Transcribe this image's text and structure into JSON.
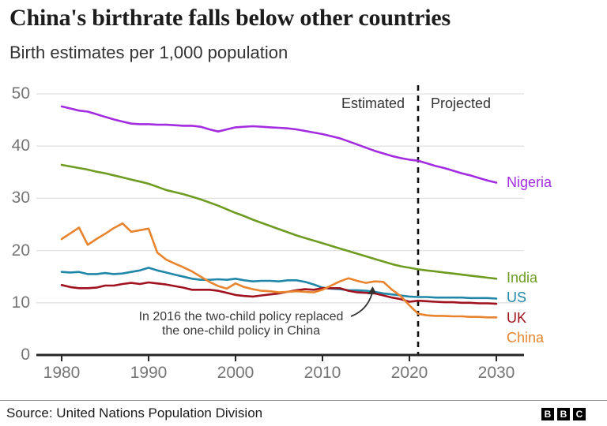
{
  "header": {
    "title": "China's birthrate falls below other countries",
    "subtitle": "Birth estimates per 1,000 population"
  },
  "chart_data": {
    "type": "line",
    "grid": "horizontal",
    "ylim": [
      0,
      50
    ],
    "yticks": [
      0,
      10,
      20,
      30,
      40,
      50
    ],
    "xticks": [
      1980,
      1990,
      2000,
      2010,
      2020,
      2030
    ],
    "divider_year": 2021,
    "estimated_label": "Estimated",
    "projected_label": "Projected",
    "legend_position": "right-of-lines",
    "years": [
      1980,
      1981,
      1982,
      1983,
      1984,
      1985,
      1986,
      1987,
      1988,
      1989,
      1990,
      1991,
      1992,
      1993,
      1994,
      1995,
      1996,
      1997,
      1998,
      1999,
      2000,
      2001,
      2002,
      2003,
      2004,
      2005,
      2006,
      2007,
      2008,
      2009,
      2010,
      2011,
      2012,
      2013,
      2014,
      2015,
      2016,
      2017,
      2018,
      2019,
      2020,
      2021,
      2022,
      2023,
      2024,
      2025,
      2026,
      2027,
      2028,
      2029,
      2030
    ],
    "series": [
      {
        "name": "Nigeria",
        "color": "#a32ce0",
        "values": [
          47.6,
          47.2,
          46.8,
          46.6,
          46.1,
          45.6,
          45.1,
          44.7,
          44.3,
          44.2,
          44.2,
          44.1,
          44.1,
          44.0,
          43.9,
          43.9,
          43.7,
          43.2,
          42.8,
          43.2,
          43.6,
          43.7,
          43.8,
          43.7,
          43.6,
          43.5,
          43.4,
          43.2,
          42.9,
          42.6,
          42.3,
          41.9,
          41.5,
          40.9,
          40.3,
          39.7,
          39.1,
          38.6,
          38.1,
          37.7,
          37.4,
          37.2,
          36.7,
          36.2,
          35.8,
          35.3,
          34.8,
          34.4,
          33.9,
          33.4,
          33.0
        ]
      },
      {
        "name": "India",
        "color": "#6e9b22",
        "values": [
          36.4,
          36.1,
          35.8,
          35.5,
          35.1,
          34.8,
          34.4,
          34.0,
          33.6,
          33.2,
          32.8,
          32.2,
          31.6,
          31.2,
          30.8,
          30.3,
          29.8,
          29.2,
          28.6,
          27.9,
          27.2,
          26.6,
          25.9,
          25.3,
          24.7,
          24.1,
          23.5,
          22.9,
          22.4,
          21.9,
          21.4,
          20.9,
          20.4,
          19.9,
          19.4,
          18.9,
          18.4,
          17.9,
          17.4,
          17.0,
          16.7,
          16.4,
          16.2,
          16.0,
          15.8,
          15.6,
          15.4,
          15.2,
          15.0,
          14.8,
          14.6
        ]
      },
      {
        "name": "US",
        "color": "#2187a8",
        "values": [
          15.9,
          15.8,
          15.9,
          15.5,
          15.5,
          15.7,
          15.5,
          15.6,
          15.9,
          16.2,
          16.7,
          16.2,
          15.8,
          15.4,
          15.0,
          14.6,
          14.4,
          14.4,
          14.5,
          14.4,
          14.6,
          14.3,
          14.1,
          14.2,
          14.2,
          14.1,
          14.3,
          14.3,
          14.0,
          13.5,
          12.9,
          12.7,
          12.6,
          12.4,
          12.4,
          12.3,
          12.1,
          11.8,
          11.6,
          11.4,
          11.2,
          11.1,
          11.1,
          11.0,
          11.0,
          11.0,
          11.0,
          10.9,
          10.9,
          10.9,
          10.8
        ]
      },
      {
        "name": "UK",
        "color": "#a0121f",
        "values": [
          13.4,
          13.0,
          12.8,
          12.8,
          12.9,
          13.3,
          13.3,
          13.6,
          13.8,
          13.6,
          13.9,
          13.7,
          13.5,
          13.2,
          12.9,
          12.5,
          12.5,
          12.5,
          12.3,
          11.9,
          11.5,
          11.3,
          11.2,
          11.4,
          11.6,
          11.8,
          12.1,
          12.4,
          12.6,
          12.5,
          12.8,
          12.8,
          12.8,
          12.3,
          12.0,
          11.9,
          11.8,
          11.4,
          11.0,
          10.7,
          10.2,
          10.4,
          10.3,
          10.2,
          10.1,
          10.1,
          10.0,
          10.0,
          9.9,
          9.9,
          9.8
        ]
      },
      {
        "name": "China",
        "color": "#e8842d",
        "values": [
          22.2,
          23.3,
          24.4,
          21.1,
          22.2,
          23.2,
          24.3,
          25.2,
          23.6,
          23.9,
          24.2,
          19.6,
          18.3,
          17.5,
          16.8,
          16.0,
          15.0,
          14.0,
          13.2,
          12.7,
          13.7,
          13.0,
          12.6,
          12.3,
          12.2,
          12.0,
          12.1,
          12.2,
          12.1,
          12.0,
          12.5,
          13.3,
          14.1,
          14.7,
          14.2,
          13.8,
          14.1,
          14.0,
          12.5,
          11.3,
          9.5,
          7.9,
          7.6,
          7.5,
          7.5,
          7.4,
          7.4,
          7.3,
          7.3,
          7.2,
          7.2
        ]
      }
    ],
    "annotation": {
      "line1": "In 2016 the two-child policy replaced",
      "line2": "the one-child policy in China",
      "target_year": 2016,
      "target_series": "China"
    },
    "colors": {
      "gridline": "#e2e2e2",
      "axis": "#262626",
      "divider_line": "#111111",
      "tick_label": "#757575",
      "annotation_text": "#3a3a3a"
    }
  },
  "footer": {
    "source": "Source: United Nations Population Division",
    "logo_letters": [
      "B",
      "B",
      "C"
    ]
  }
}
